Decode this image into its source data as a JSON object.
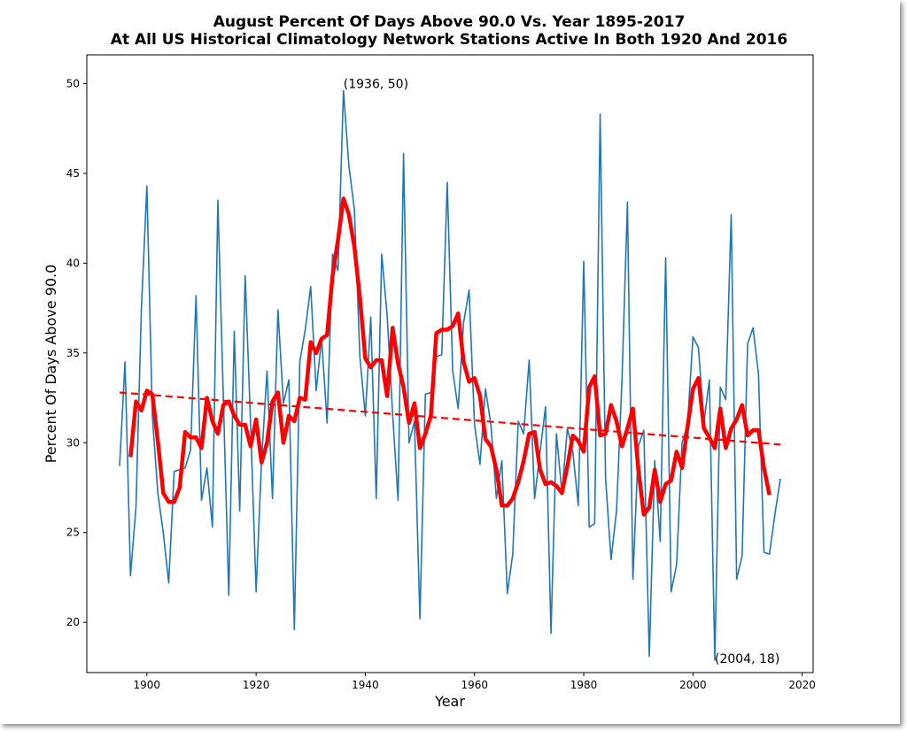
{
  "chart_data": {
    "type": "line",
    "title": "August Percent Of Days Above 90.0 Vs. Year 1895-2017",
    "subtitle": "At All US Historical Climatology Network Stations Active In Both 1920 And 2016",
    "xlabel": "Year",
    "ylabel": "Percent Of Days Above 90.0",
    "xlim": [
      1889,
      2022
    ],
    "ylim": [
      17.2,
      51.6
    ],
    "xticks": [
      1900,
      1920,
      1940,
      1960,
      1980,
      2000,
      2020
    ],
    "yticks": [
      20,
      25,
      30,
      35,
      40,
      45,
      50
    ],
    "grid": false,
    "annotations": [
      {
        "text": "(1936, 50)",
        "x": 1936,
        "y": 50
      },
      {
        "text": "(2004, 18)",
        "x": 2004,
        "y": 18
      }
    ],
    "series": [
      {
        "style": "line",
        "color": "#1f77b4",
        "x": [
          1895,
          1896,
          1897,
          1898,
          1899,
          1900,
          1901,
          1902,
          1903,
          1904,
          1905,
          1906,
          1907,
          1908,
          1909,
          1910,
          1911,
          1912,
          1913,
          1914,
          1915,
          1916,
          1917,
          1918,
          1919,
          1920,
          1921,
          1922,
          1923,
          1924,
          1925,
          1926,
          1927,
          1928,
          1929,
          1930,
          1931,
          1932,
          1933,
          1934,
          1935,
          1936,
          1937,
          1938,
          1939,
          1940,
          1941,
          1942,
          1943,
          1944,
          1945,
          1946,
          1947,
          1948,
          1949,
          1950,
          1951,
          1952,
          1953,
          1954,
          1955,
          1956,
          1957,
          1958,
          1959,
          1960,
          1961,
          1962,
          1963,
          1964,
          1965,
          1966,
          1967,
          1968,
          1969,
          1970,
          1971,
          1972,
          1973,
          1974,
          1975,
          1976,
          1977,
          1978,
          1979,
          1980,
          1981,
          1982,
          1983,
          1984,
          1985,
          1986,
          1987,
          1988,
          1989,
          1990,
          1991,
          1992,
          1993,
          1994,
          1995,
          1996,
          1997,
          1998,
          1999,
          2000,
          2001,
          2002,
          2003,
          2004,
          2005,
          2006,
          2007,
          2008,
          2009,
          2010,
          2011,
          2012,
          2013,
          2014,
          2015,
          2016
        ],
        "y": [
          28.7,
          34.5,
          22.6,
          26.4,
          37.5,
          44.3,
          31.5,
          27.2,
          25.0,
          22.2,
          28.4,
          28.5,
          28.6,
          29.6,
          38.2,
          26.8,
          28.6,
          25.3,
          43.5,
          32.5,
          21.5,
          36.2,
          26.2,
          39.3,
          31.0,
          21.7,
          29.0,
          34.0,
          26.9,
          37.4,
          32.2,
          33.5,
          19.6,
          34.5,
          36.3,
          38.7,
          32.9,
          35.8,
          31.1,
          40.5,
          39.6,
          49.6,
          45.4,
          43.0,
          34.8,
          31.5,
          37.0,
          26.9,
          40.5,
          37.1,
          31.6,
          26.8,
          46.1,
          30.0,
          31.2,
          20.2,
          32.7,
          32.8,
          34.8,
          34.9,
          44.5,
          34.0,
          31.9,
          36.7,
          38.5,
          31.0,
          28.8,
          33.0,
          31.0,
          26.9,
          29.0,
          21.6,
          23.8,
          31.2,
          30.5,
          34.6,
          26.9,
          29.5,
          32.0,
          19.4,
          30.5,
          27.2,
          30.8,
          29.5,
          26.5,
          40.1,
          25.3,
          25.5,
          48.3,
          28.0,
          23.5,
          26.2,
          33.5,
          43.4,
          22.4,
          29.8,
          30.7,
          18.1,
          29.0,
          24.5,
          40.3,
          21.7,
          23.2,
          30.0,
          31.0,
          35.9,
          35.3,
          31.1,
          33.5,
          17.9,
          33.1,
          32.4,
          42.7,
          22.4,
          23.7,
          35.5,
          36.4,
          33.8,
          23.9,
          23.8,
          26.0,
          28.0
        ]
      },
      {
        "style": "line",
        "color": "#ff0000",
        "x": [
          1897,
          1898,
          1899,
          1900,
          1901,
          1902,
          1903,
          1904,
          1905,
          1906,
          1907,
          1908,
          1909,
          1910,
          1911,
          1912,
          1913,
          1914,
          1915,
          1916,
          1917,
          1918,
          1919,
          1920,
          1921,
          1922,
          1923,
          1924,
          1925,
          1926,
          1927,
          1928,
          1929,
          1930,
          1931,
          1932,
          1933,
          1934,
          1935,
          1936,
          1937,
          1938,
          1939,
          1940,
          1941,
          1942,
          1943,
          1944,
          1945,
          1946,
          1947,
          1948,
          1949,
          1950,
          1951,
          1952,
          1953,
          1954,
          1955,
          1956,
          1957,
          1958,
          1959,
          1960,
          1961,
          1962,
          1963,
          1964,
          1965,
          1966,
          1967,
          1968,
          1969,
          1970,
          1971,
          1972,
          1973,
          1974,
          1975,
          1976,
          1977,
          1978,
          1979,
          1980,
          1981,
          1982,
          1983,
          1984,
          1985,
          1986,
          1987,
          1988,
          1989,
          1990,
          1991,
          1992,
          1993,
          1994,
          1995,
          1996,
          1997,
          1998,
          1999,
          2000,
          2001,
          2002,
          2003,
          2004,
          2005,
          2006,
          2007,
          2008,
          2009,
          2010,
          2011,
          2012,
          2013,
          2014
        ],
        "y": [
          29.2,
          32.3,
          31.8,
          32.9,
          32.7,
          30.1,
          27.2,
          26.7,
          26.7,
          27.5,
          30.6,
          30.3,
          30.3,
          29.7,
          32.5,
          31.2,
          30.5,
          32.1,
          32.3,
          31.5,
          31.0,
          31.0,
          29.8,
          31.3,
          28.9,
          30.0,
          32.3,
          32.8,
          30.0,
          31.5,
          31.2,
          32.5,
          32.4,
          35.6,
          35.0,
          35.8,
          36.0,
          39.3,
          41.3,
          43.6,
          42.7,
          40.9,
          38.1,
          34.7,
          34.2,
          34.6,
          34.6,
          32.6,
          36.4,
          34.4,
          33.1,
          31.1,
          32.2,
          29.7,
          30.5,
          31.5,
          36.1,
          36.3,
          36.3,
          36.5,
          37.2,
          34.5,
          33.4,
          33.6,
          32.6,
          30.2,
          29.8,
          28.5,
          26.5,
          26.5,
          26.9,
          27.8,
          29.0,
          30.5,
          30.6,
          28.5,
          27.7,
          27.8,
          27.6,
          27.2,
          28.7,
          30.4,
          30.1,
          29.5,
          33.1,
          33.7,
          30.4,
          30.5,
          32.1,
          31.2,
          29.8,
          30.8,
          31.9,
          28.5,
          26.0,
          26.4,
          28.5,
          26.7,
          27.7,
          27.9,
          29.5,
          28.6,
          30.9,
          33.0,
          33.6,
          30.8,
          30.3,
          29.7,
          31.9,
          29.7,
          30.8,
          31.3,
          32.1,
          30.4,
          30.7,
          30.7,
          28.6,
          27.1
        ]
      },
      {
        "style": "dashed",
        "color": "#ff0000",
        "x": [
          1895,
          2016
        ],
        "y": [
          32.8,
          29.9
        ]
      }
    ]
  }
}
